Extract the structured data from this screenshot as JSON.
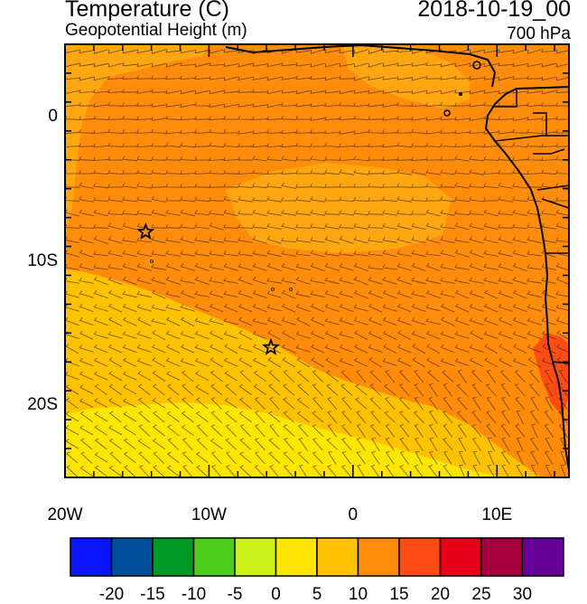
{
  "header": {
    "title": "Temperature (C)",
    "subtitle": "Geopotential Height (m)",
    "datetime": "2018-10-19_00",
    "level": "700 hPa"
  },
  "map": {
    "lon_range": [
      -20,
      15
    ],
    "lat_range": [
      -25,
      5
    ],
    "lat_ticks": [
      {
        "lat": 0,
        "label": "0"
      },
      {
        "lat": -10,
        "label": "10S"
      },
      {
        "lat": -20,
        "label": "20S"
      }
    ],
    "lon_ticks": [
      {
        "lon": -20,
        "label": "20W"
      },
      {
        "lon": -10,
        "label": "10W"
      },
      {
        "lon": 0,
        "label": "0"
      },
      {
        "lon": 10,
        "label": "10E"
      }
    ],
    "stations": [
      {
        "lon": -14.4,
        "lat": -8.0
      },
      {
        "lon": -5.7,
        "lat": -16.0
      }
    ],
    "colors": {
      "band_10_15": "#ffc200",
      "band_15_20": "#ff8c0a",
      "band_20_25": "#ff4c14",
      "band_5_10": "#ffe600"
    }
  },
  "colorbar": {
    "colors": [
      "#0a14ff",
      "#004d99",
      "#009926",
      "#4dcc1a",
      "#ccf21a",
      "#ffe600",
      "#ffc200",
      "#ff8c0a",
      "#ff4c14",
      "#e6001a",
      "#a6003d",
      "#660099"
    ],
    "labels": [
      "-20",
      "-15",
      "-10",
      "-5",
      "0",
      "5",
      "10",
      "15",
      "20",
      "25",
      "30"
    ]
  }
}
